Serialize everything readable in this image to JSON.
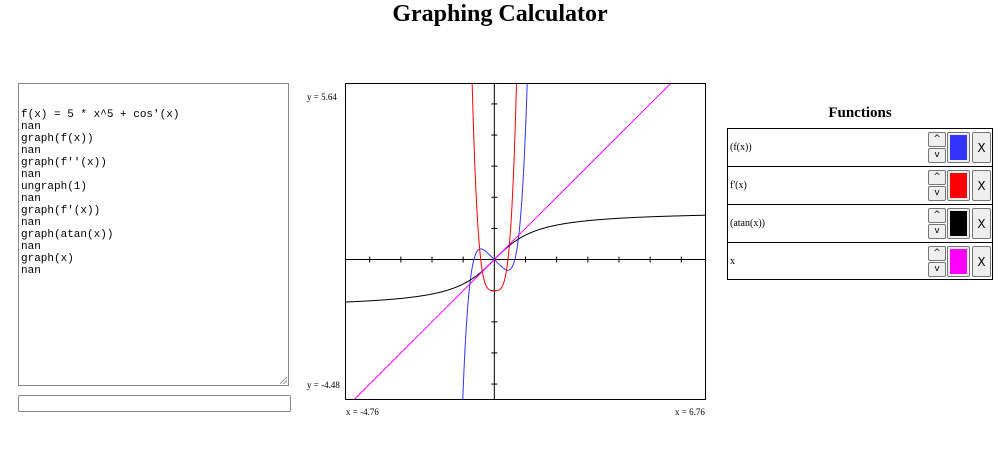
{
  "title": "Graphing Calculator",
  "console": {
    "lines": [
      "f(x) = 5 * x^5 + cos'(x)",
      "nan",
      "graph(f(x))",
      "nan",
      "graph(f''(x))",
      "nan",
      "ungraph(1)",
      "nan",
      "graph(f'(x))",
      "nan",
      "graph(atan(x))",
      "nan",
      "graph(x)",
      "nan"
    ]
  },
  "input": {
    "value": "",
    "placeholder": ""
  },
  "graph": {
    "y_top_label": "y = 5.64",
    "y_bottom_label": "y = -4.48",
    "x_left_label": "x = -4.76",
    "x_right_label": "x = 6.76",
    "xmin": -4.76,
    "xmax": 6.76,
    "ymin": -4.48,
    "ymax": 5.64
  },
  "functions_panel": {
    "title": "Functions",
    "up_label": "^",
    "down_label": "v",
    "remove_label": "X",
    "items": [
      {
        "label": "(f(x))",
        "color": "#3333ff"
      },
      {
        "label": "f'(x)",
        "color": "#ff0000"
      },
      {
        "label": "(atan(x))",
        "color": "#000000"
      },
      {
        "label": "x",
        "color": "#ff00ff"
      }
    ]
  }
}
